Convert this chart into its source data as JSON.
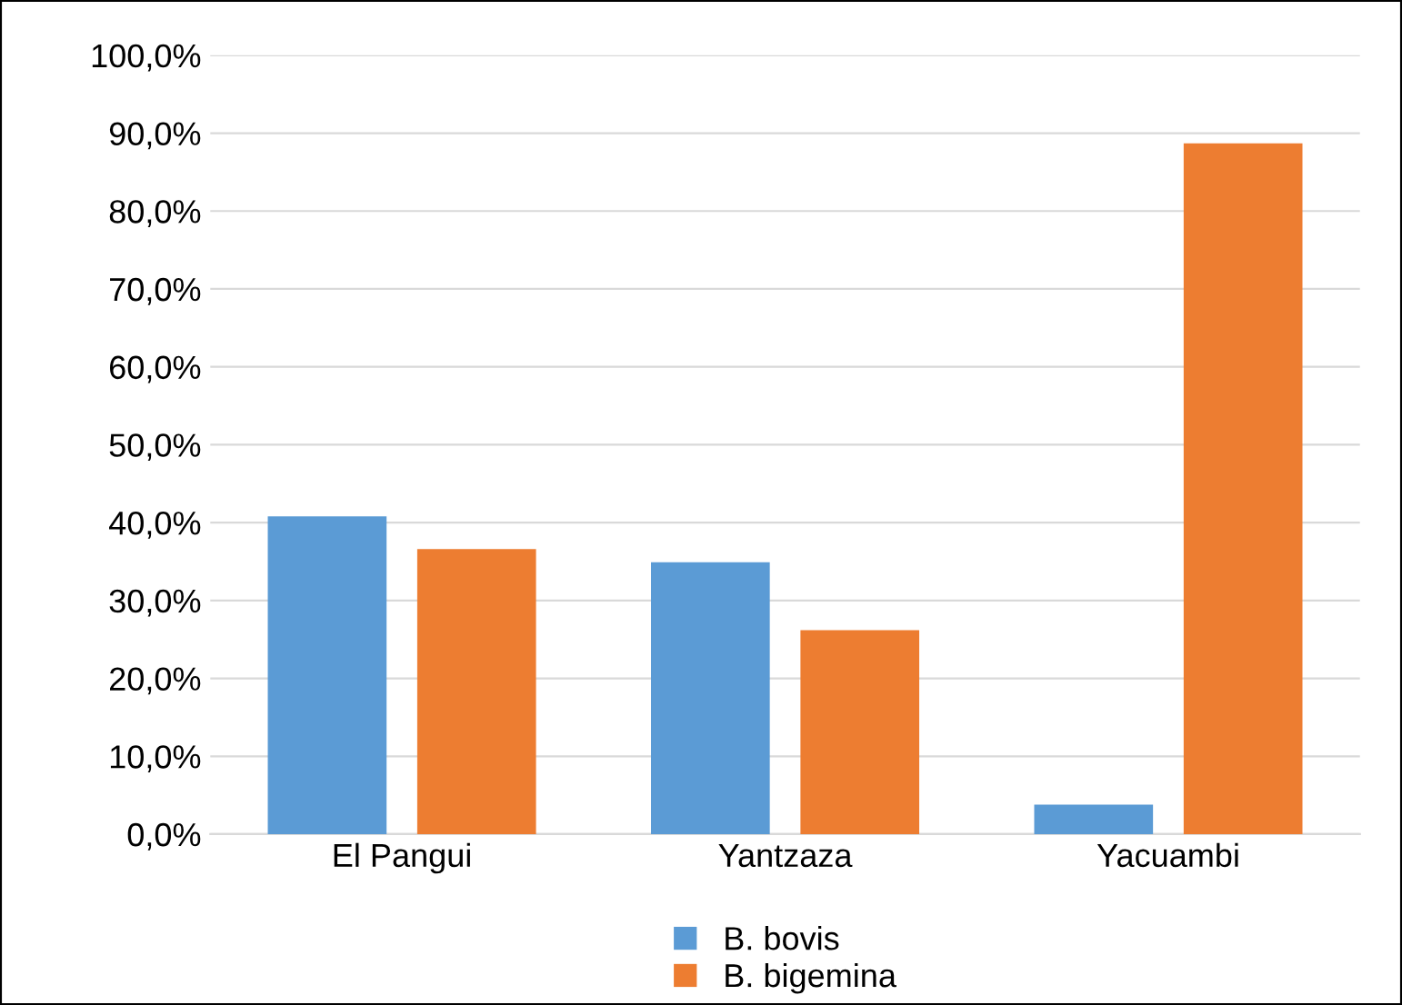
{
  "chart_data": {
    "type": "bar",
    "categories": [
      "El Pangui",
      "Yantzaza",
      "Yacuambi"
    ],
    "series": [
      {
        "name": "B. bovis",
        "color": "#5b9bd5",
        "values": [
          40.8,
          34.9,
          3.8
        ]
      },
      {
        "name": "B. bigemina",
        "color": "#ed7d31",
        "values": [
          36.6,
          26.2,
          88.7
        ]
      }
    ],
    "ylim": [
      0,
      100
    ],
    "yticks": [
      {
        "value": 0,
        "label": "0,0%"
      },
      {
        "value": 10,
        "label": "10,0%"
      },
      {
        "value": 20,
        "label": "20,0%"
      },
      {
        "value": 30,
        "label": "30,0%"
      },
      {
        "value": 40,
        "label": "40,0%"
      },
      {
        "value": 50,
        "label": "50,0%"
      },
      {
        "value": 60,
        "label": "60,0%"
      },
      {
        "value": 70,
        "label": "70,0%"
      },
      {
        "value": 80,
        "label": "80,0%"
      },
      {
        "value": 90,
        "label": "90,0%"
      },
      {
        "value": 100,
        "label": "100,0%"
      }
    ],
    "grid": "y",
    "legend": "bottom"
  }
}
